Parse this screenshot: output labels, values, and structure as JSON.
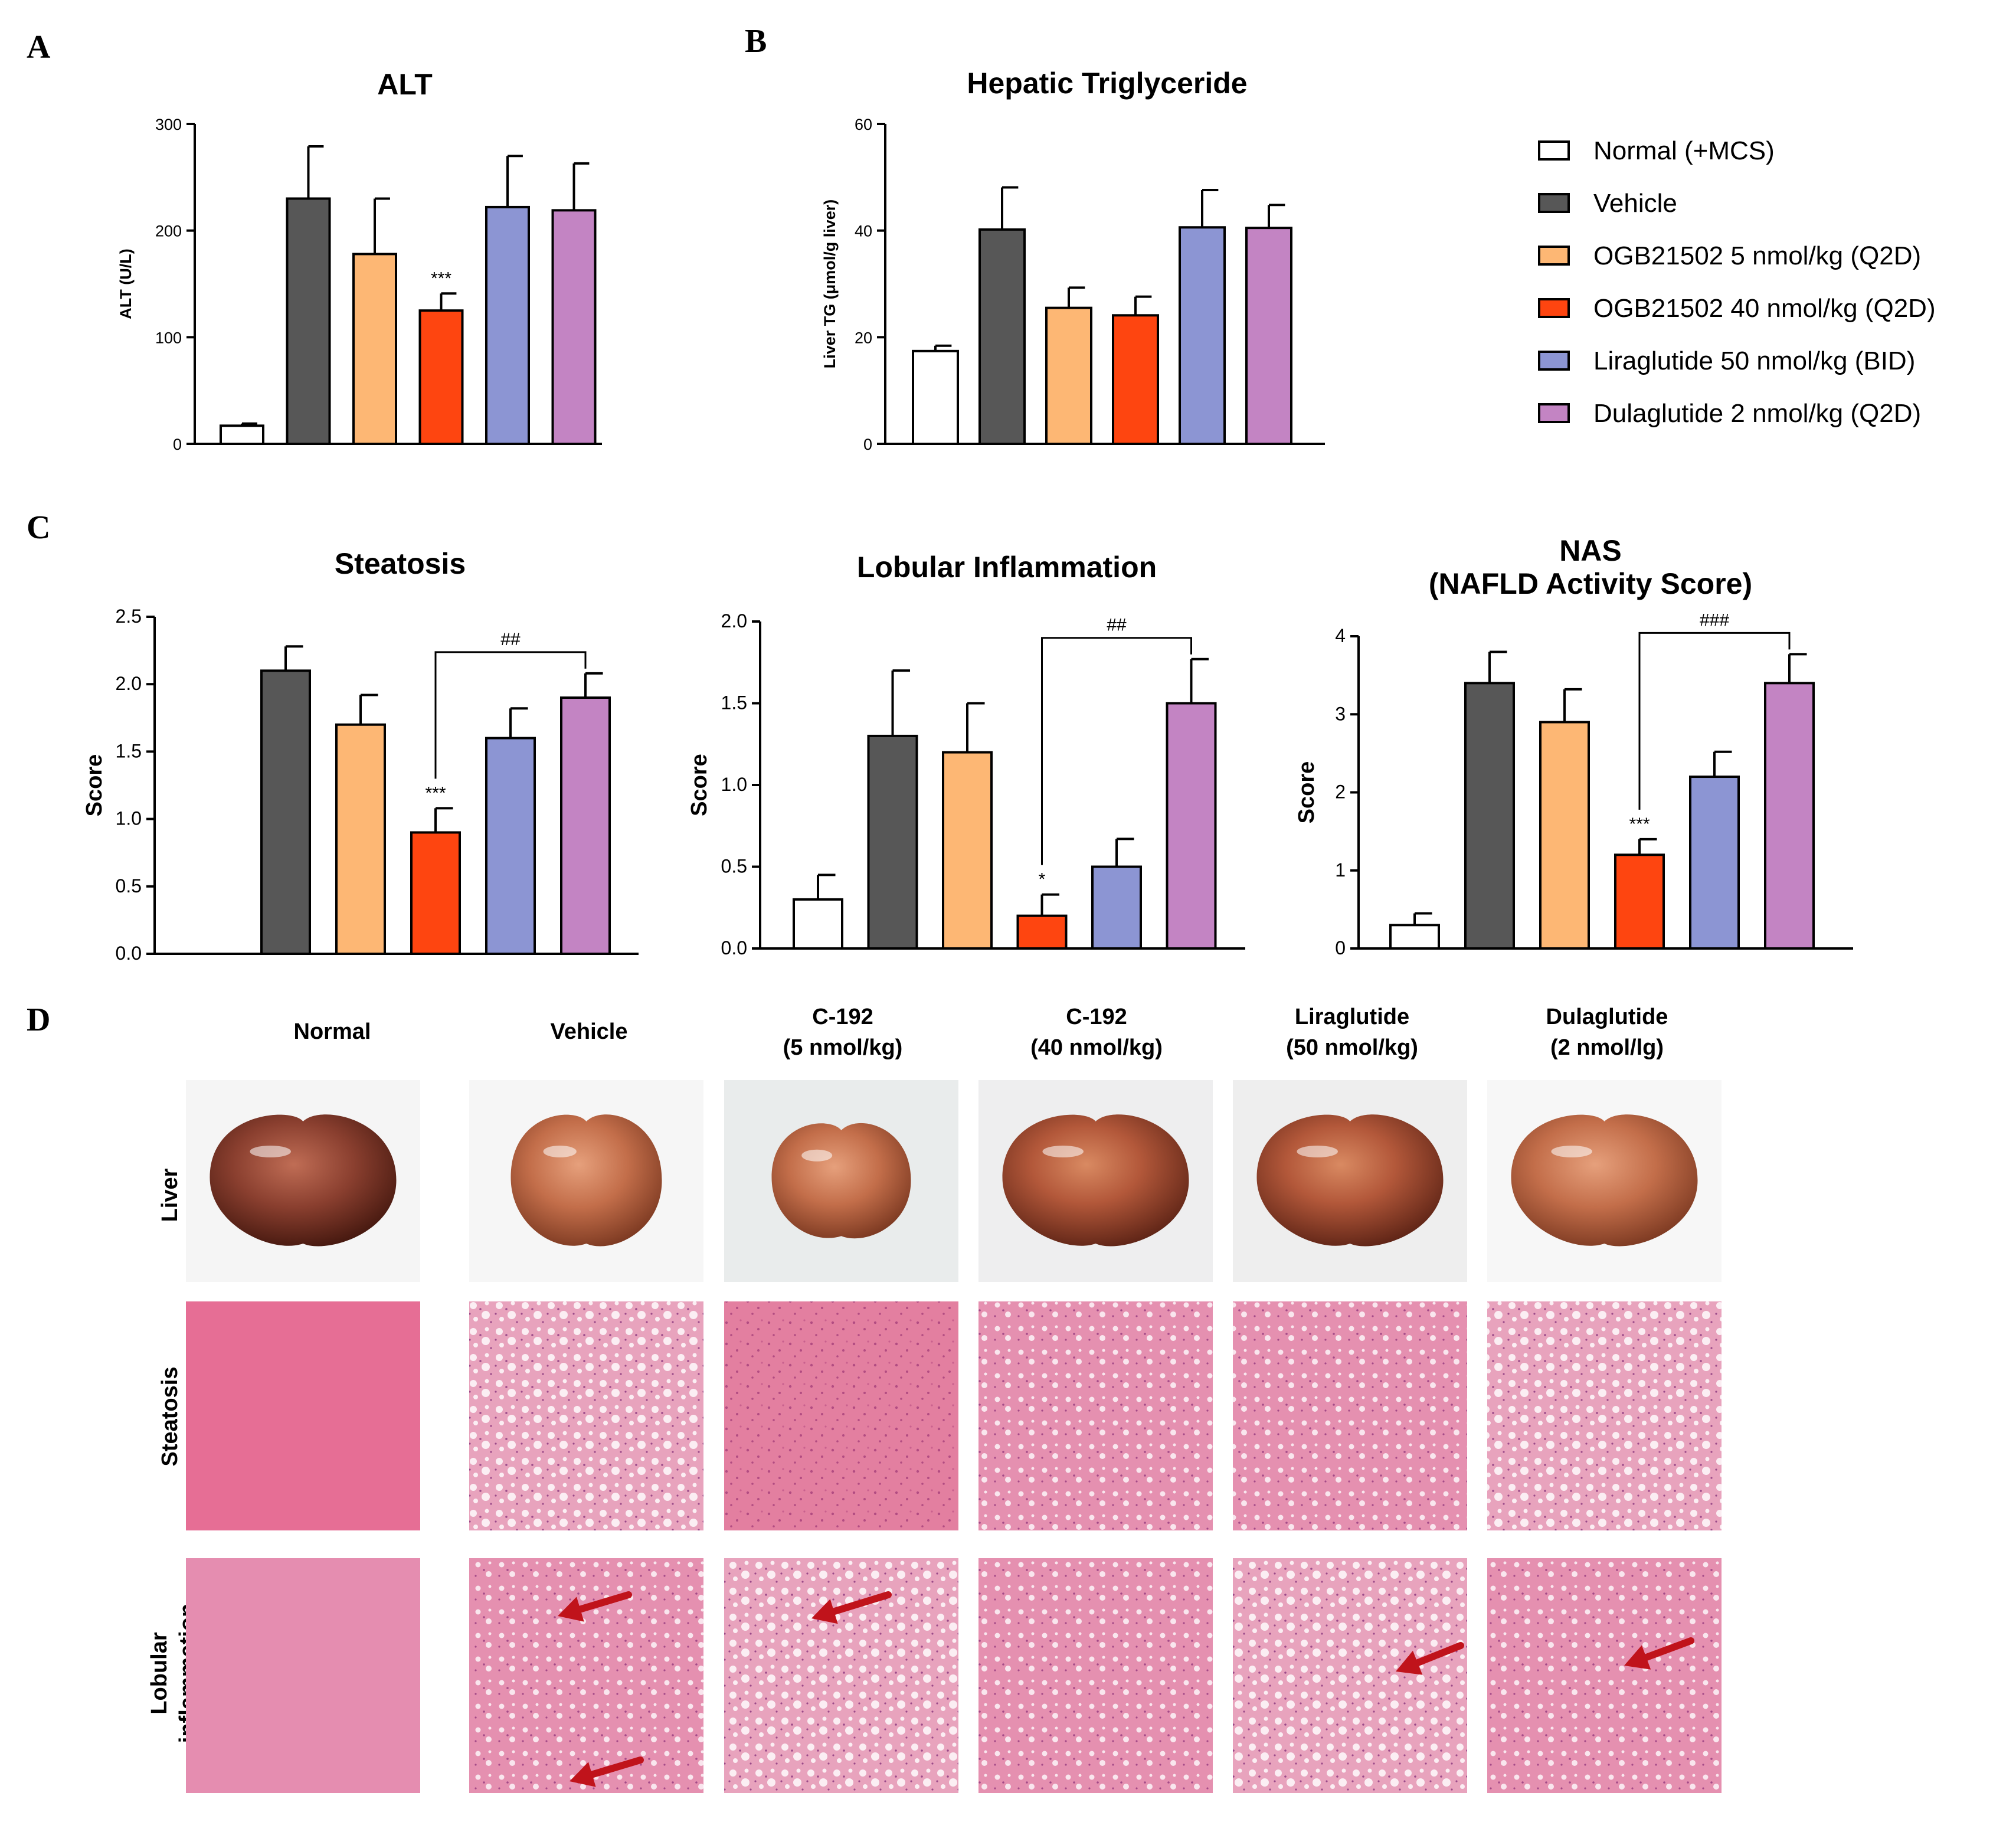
{
  "panel_letters": [
    "A",
    "B",
    "C",
    "D"
  ],
  "colors": {
    "Normal (+MCS)": "#ffffff",
    "Vehicle": "#575757",
    "OGB21502 5 nmol/kg (Q2D)": "#fdb774",
    "OGB21502 40 nmol/kg (Q2D)": "#fe4510",
    "Liraglutide 50 nmol/kg (BID)": "#8c95d3",
    "Dulaglutide 2 nmol/kg (Q2D)": "#c384c3",
    "arrow": "#c0131b"
  },
  "legend": {
    "entries": [
      "Normal (+MCS)",
      "Vehicle",
      "OGB21502 5 nmol/kg (Q2D)",
      "OGB21502 40 nmol/kg (Q2D)",
      "Liraglutide 50 nmol/kg (BID)",
      "Dulaglutide 2 nmol/kg (Q2D)"
    ]
  },
  "chart_data": [
    {
      "id": "A",
      "type": "bar",
      "title": "ALT",
      "xlabel": "",
      "ylabel": "ALT (U/L)",
      "ylim": [
        0,
        300
      ],
      "yticks": [
        "0",
        "100",
        "200",
        "300"
      ],
      "categories": [
        "Normal (+MCS)",
        "Vehicle",
        "OGB21502 5 nmol/kg (Q2D)",
        "OGB21502 40 nmol/kg (Q2D)",
        "Liraglutide 50 nmol/kg (BID)",
        "Dulaglutide 2 nmol/kg (Q2D)"
      ],
      "values": [
        17,
        230,
        178,
        125,
        222,
        219
      ],
      "errors": [
        2,
        49,
        52,
        16,
        48,
        44
      ],
      "significance": [
        "",
        "",
        "",
        "***",
        "",
        ""
      ],
      "brackets": []
    },
    {
      "id": "B",
      "type": "bar",
      "title": "Hepatic Triglyceride",
      "xlabel": "",
      "ylabel": "Liver TG (μmol/g liver)",
      "ylim": [
        0,
        60
      ],
      "yticks": [
        "0",
        "20",
        "40",
        "60"
      ],
      "categories": [
        "Normal (+MCS)",
        "Vehicle",
        "OGB21502 5 nmol/kg (Q2D)",
        "OGB21502 40 nmol/kg (Q2D)",
        "Liraglutide 50 nmol/kg (BID)",
        "Dulaglutide 2 nmol/kg (Q2D)"
      ],
      "values": [
        17.4,
        40.2,
        25.5,
        24.1,
        40.6,
        40.5
      ],
      "errors": [
        1.0,
        7.9,
        3.8,
        3.5,
        7.0,
        4.3
      ],
      "significance": [
        "",
        "",
        "",
        "",
        "",
        ""
      ],
      "brackets": []
    },
    {
      "id": "C1",
      "type": "bar",
      "title": "Steatosis",
      "xlabel": "",
      "ylabel": "Score",
      "ylim": [
        0,
        2.5
      ],
      "yticks": [
        "0.0",
        "0.5",
        "1.0",
        "1.5",
        "2.0",
        "2.5"
      ],
      "categories": [
        "Normal (+MCS)",
        "Vehicle",
        "OGB21502 5 nmol/kg (Q2D)",
        "OGB21502 40 nmol/kg (Q2D)",
        "Liraglutide 50 nmol/kg (BID)",
        "Dulaglutide 2 nmol/kg (Q2D)"
      ],
      "values": [
        0,
        2.1,
        1.7,
        0.9,
        1.6,
        1.9
      ],
      "errors": [
        0,
        0.18,
        0.22,
        0.18,
        0.22,
        0.18
      ],
      "significance": [
        "",
        "",
        "",
        "***",
        "",
        ""
      ],
      "brackets": [
        {
          "from": 3,
          "to": 5,
          "label": "##"
        }
      ]
    },
    {
      "id": "C2",
      "type": "bar",
      "title": "Lobular Inflammation",
      "xlabel": "",
      "ylabel": "Score",
      "ylim": [
        0,
        2.0
      ],
      "yticks": [
        "0.0",
        "0.5",
        "1.0",
        "1.5",
        "2.0"
      ],
      "categories": [
        "Normal (+MCS)",
        "Vehicle",
        "OGB21502 5 nmol/kg (Q2D)",
        "OGB21502 40 nmol/kg (Q2D)",
        "Liraglutide 50 nmol/kg (BID)",
        "Dulaglutide 2 nmol/kg (Q2D)"
      ],
      "values": [
        0.3,
        1.3,
        1.2,
        0.2,
        0.5,
        1.5
      ],
      "errors": [
        0.15,
        0.4,
        0.3,
        0.13,
        0.17,
        0.27
      ],
      "significance": [
        "",
        "",
        "",
        "*",
        "",
        ""
      ],
      "brackets": [
        {
          "from": 3,
          "to": 5,
          "label": "##"
        }
      ]
    },
    {
      "id": "C3",
      "type": "bar",
      "title": "NAS",
      "subtitle": "(NAFLD Activity Score)",
      "xlabel": "",
      "ylabel": "Score",
      "ylim": [
        0,
        4
      ],
      "yticks": [
        "0",
        "1",
        "2",
        "3",
        "4"
      ],
      "categories": [
        "Normal (+MCS)",
        "Vehicle",
        "OGB21502 5 nmol/kg (Q2D)",
        "OGB21502 40 nmol/kg (Q2D)",
        "Liraglutide 50 nmol/kg (BID)",
        "Dulaglutide 2 nmol/kg (Q2D)"
      ],
      "values": [
        0.3,
        3.4,
        2.9,
        1.2,
        2.2,
        3.4
      ],
      "errors": [
        0.15,
        0.4,
        0.42,
        0.2,
        0.32,
        0.37
      ],
      "significance": [
        "",
        "",
        "",
        "***",
        "",
        ""
      ],
      "brackets": [
        {
          "from": 3,
          "to": 5,
          "label": "###"
        }
      ]
    }
  ],
  "panel_d": {
    "columns": [
      {
        "line1": "Normal",
        "line2": ""
      },
      {
        "line1": "Vehicle",
        "line2": ""
      },
      {
        "line1": "C-192",
        "line2": "(5 nmol/kg)"
      },
      {
        "line1": "C-192",
        "line2": "(40 nmol/kg)"
      },
      {
        "line1": "Liraglutide",
        "line2": "(50 nmol/kg)"
      },
      {
        "line1": "Dulaglutide",
        "line2": "(2 nmol/lg)"
      }
    ],
    "rows": [
      {
        "line1": "Liver",
        "line2": ""
      },
      {
        "line1": "Steatosis",
        "line2": ""
      },
      {
        "line1": "Lobular",
        "line2": "inflammation"
      }
    ]
  }
}
